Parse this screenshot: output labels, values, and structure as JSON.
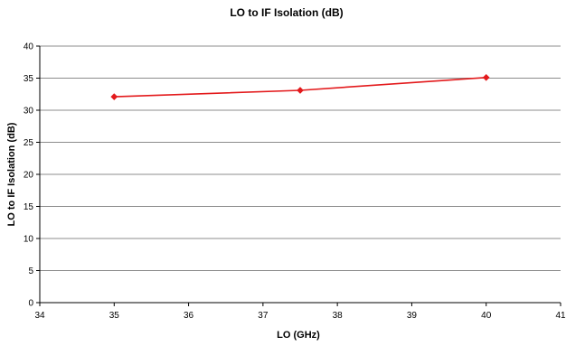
{
  "chart_data": {
    "type": "line",
    "title": "LO to IF Isolation (dB)",
    "xlabel": "LO (GHz)",
    "ylabel": "LO to IF Isolation (dB)",
    "xlim": [
      34,
      41
    ],
    "ylim": [
      0,
      40
    ],
    "x_ticks": [
      34,
      35,
      36,
      37,
      38,
      39,
      40,
      41
    ],
    "y_ticks": [
      0,
      5,
      10,
      15,
      20,
      25,
      30,
      35,
      40
    ],
    "grid": "horizontal",
    "legend": "none",
    "series": [
      {
        "x": [
          35,
          37.5,
          40
        ],
        "y": [
          32.1,
          33.1,
          35.1
        ],
        "color": "#e31a1c",
        "marker": "diamond"
      }
    ]
  }
}
